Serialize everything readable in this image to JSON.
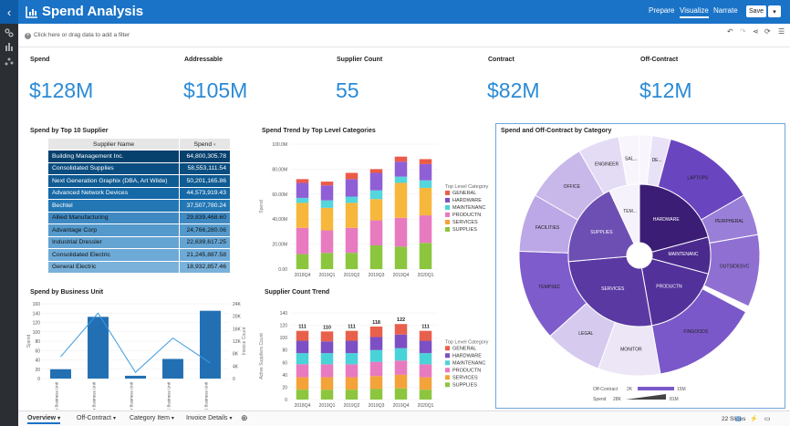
{
  "app": {
    "title": "Spend Analysis",
    "modes": [
      "Prepare",
      "Visualize",
      "Narrate"
    ],
    "active_mode": "Visualize",
    "save_label": "Save"
  },
  "filter": {
    "text": "Click here or drag data to add a filter"
  },
  "kpis": [
    {
      "label": "Spend",
      "value": "$128M"
    },
    {
      "label": "Addressable",
      "value": "$105M"
    },
    {
      "label": "Supplier Count",
      "value": "55"
    },
    {
      "label": "Contract",
      "value": "$82M"
    },
    {
      "label": "Off-Contract",
      "value": "$12M"
    }
  ],
  "supplier_table": {
    "title": "Spend by Top 10 Supplier",
    "columns": [
      "Supplier Name",
      "Spend"
    ],
    "rows": [
      {
        "name": "Building Management Inc.",
        "spend": "64,800,305.78",
        "shade": "#06406d"
      },
      {
        "name": "Consolidated Supplies",
        "spend": "58,553,111.54",
        "shade": "#0a4d80"
      },
      {
        "name": "Next Generation Graphix (DBA, Art Wilde)",
        "spend": "50,201,165.86",
        "shade": "#0f5b93"
      },
      {
        "name": "Advanced Network Devices",
        "spend": "44,573,919.43",
        "shade": "#1668a6"
      },
      {
        "name": "Bechtel",
        "spend": "37,507,780.24",
        "shade": "#2477b5"
      },
      {
        "name": "Allied Manufacturing",
        "spend": "29,839,468.60",
        "shade": "#3f89c2"
      },
      {
        "name": "Advantage Corp",
        "spend": "24,766,280.06",
        "shade": "#5499cc"
      },
      {
        "name": "Industrial Dressler",
        "spend": "22,639,617.25",
        "shade": "#64a4d3"
      },
      {
        "name": "Consolidated Electric",
        "spend": "21,245,887.58",
        "shade": "#6eaad7"
      },
      {
        "name": "General Electric",
        "spend": "18,932,857.46",
        "shade": "#79b1da"
      }
    ]
  },
  "trend_title": "Spend Trend by Top Level Categories",
  "count_title": "Supplier Count Trend",
  "bu_title": "Spend by Business Unit",
  "sunburst_title": "Spend and Off-Contract by Category",
  "colors": {
    "GENERAL": "#e8604c",
    "HARDWARE": "#7d4fc4",
    "MAINTENANC": "#49d3d9",
    "PRODUCTN": "#e87ac0",
    "SERVICES": "#f3a33a",
    "SUPPLIES": "#8cc63f",
    "bar": "#2270b3",
    "line": "#3d9be0"
  },
  "chart_data": [
    {
      "type": "bar",
      "stacked": true,
      "title": "Spend Trend by Top Level Categories",
      "ylabel": "Spend",
      "legend_title": "Top Level Category",
      "legend_position": "right",
      "ylim": [
        0,
        100
      ],
      "y_ticks": [
        "0.00",
        "20.00M",
        "40.00M",
        "60.00M",
        "80.00M",
        "100.0M"
      ],
      "categories": [
        "2018Q4",
        "2019Q1",
        "2019Q2",
        "2019Q3",
        "2019Q4",
        "2020Q1"
      ],
      "series": [
        {
          "name": "SUPPLIES",
          "values": [
            12,
            13,
            13,
            19,
            18,
            21
          ]
        },
        {
          "name": "SERVICES",
          "values": [
            0,
            0,
            0,
            0,
            0,
            0
          ]
        },
        {
          "name": "PRODUCTN",
          "values": [
            21,
            18,
            20,
            20,
            23,
            22
          ]
        },
        {
          "name": "MAINTENANC",
          "values": [
            0,
            0,
            0,
            0,
            0,
            0
          ]
        },
        {
          "name": "HARDWARE",
          "values": [
            0,
            0,
            0,
            0,
            0,
            0
          ]
        },
        {
          "name": "GENERAL",
          "values": [
            0,
            0,
            0,
            0,
            0,
            0
          ]
        },
        {
          "name": "_orange",
          "values": [
            20,
            18,
            20,
            17,
            28,
            22
          ]
        },
        {
          "name": "_cyan",
          "values": [
            4,
            6,
            5,
            7,
            5,
            6
          ]
        },
        {
          "name": "_purple",
          "values": [
            12,
            12,
            14,
            14,
            12,
            13
          ]
        },
        {
          "name": "_red",
          "values": [
            3,
            3,
            5,
            3,
            4,
            4
          ]
        }
      ],
      "legend": [
        "GENERAL",
        "HARDWARE",
        "MAINTENANC",
        "PRODUCTN",
        "SERVICES",
        "SUPPLIES"
      ]
    },
    {
      "type": "bar",
      "stacked": true,
      "title": "Supplier Count Trend",
      "ylabel": "Active Suppliers Count",
      "legend_title": "Top Level Category",
      "legend_position": "right",
      "ylim": [
        0,
        140
      ],
      "y_ticks": [
        "0",
        "20",
        "40",
        "60",
        "80",
        "100",
        "120",
        "140"
      ],
      "categories": [
        "2018Q4",
        "2019Q1",
        "2019Q2",
        "2019Q3",
        "2019Q4",
        "2020Q1"
      ],
      "totals": [
        111,
        110,
        111,
        118,
        122,
        111
      ],
      "series": [
        {
          "name": "SUPPLIES",
          "values": [
            16,
            16,
            16,
            17,
            18,
            16
          ]
        },
        {
          "name": "SERVICES",
          "values": [
            20,
            20,
            20,
            21,
            22,
            20
          ]
        },
        {
          "name": "PRODUCTN",
          "values": [
            21,
            21,
            21,
            23,
            23,
            21
          ]
        },
        {
          "name": "MAINTENANC",
          "values": [
            18,
            18,
            18,
            19,
            20,
            18
          ]
        },
        {
          "name": "HARDWARE",
          "values": [
            20,
            19,
            20,
            21,
            22,
            20
          ]
        },
        {
          "name": "GENERAL",
          "values": [
            16,
            16,
            16,
            17,
            17,
            16
          ]
        }
      ],
      "legend": [
        "GENERAL",
        "HARDWARE",
        "MAINTENANC",
        "PRODUCTN",
        "SERVICES",
        "SUPPLIES"
      ]
    },
    {
      "type": "bar",
      "title": "Spend by Business Unit",
      "ylabel": "Spend",
      "y2label": "Invoice Count",
      "categories": [
        "Germany Business Unit",
        "Japan Business Unit",
        "Sweden Business Unit",
        "UK Business Unit",
        "US Business Unit"
      ],
      "left_ticks": [
        "0",
        "20",
        "40",
        "60",
        "80",
        "100",
        "120",
        "140",
        "160"
      ],
      "right_ticks": [
        "0",
        "4K",
        "8K",
        "12K",
        "16K",
        "20K",
        "24K"
      ],
      "values": [
        20,
        132,
        6,
        42,
        145
      ],
      "ylim": [
        0,
        160
      ],
      "line": {
        "values": [
          7,
          21,
          2,
          13,
          5
        ],
        "ylim": [
          0,
          24
        ]
      }
    }
  ],
  "sunburst": {
    "inner": [
      {
        "label": "HARDWARE",
        "from": 0,
        "to": 75,
        "color": "#3b1d75"
      },
      {
        "label": "MAINTENANC",
        "from": 75,
        "to": 105,
        "color": "#4b2a8e"
      },
      {
        "label": "PRODUCTN",
        "from": 105,
        "to": 170,
        "color": "#53319a"
      },
      {
        "label": "SERVICES",
        "from": 170,
        "to": 265,
        "color": "#5a39a3"
      },
      {
        "label": "SUPPLIES",
        "from": 265,
        "to": 335,
        "color": "#6d4fb3"
      },
      {
        "label": "TEM...",
        "from": 335,
        "to": 360,
        "color": "#f5f2fb"
      }
    ],
    "outer": [
      {
        "label": "LAPTOPS",
        "from": 15,
        "to": 60,
        "color": "#6a45c0"
      },
      {
        "label": "PERIPHERAL",
        "from": 60,
        "to": 80,
        "color": "#9a7fd8"
      },
      {
        "label": "OUTSIDESVC",
        "from": 80,
        "to": 115,
        "color": "#8f70d2"
      },
      {
        "label": "FINGOODS",
        "from": 118,
        "to": 170,
        "color": "#7a58c9"
      },
      {
        "label": "MONITOR",
        "from": 170,
        "to": 200,
        "color": "#ece6f7"
      },
      {
        "label": "LEGAL",
        "from": 200,
        "to": 228,
        "color": "#d6cbef"
      },
      {
        "label": "TEMPSEC",
        "from": 228,
        "to": 272,
        "color": "#7e5ccb"
      },
      {
        "label": "FACILITIES",
        "from": 272,
        "to": 300,
        "color": "#bca8e6"
      },
      {
        "label": "OFFICE",
        "from": 300,
        "to": 330,
        "color": "#c8b8ea"
      },
      {
        "label": "ENGINEER",
        "from": 330,
        "to": 350,
        "color": "#e4dcf5"
      },
      {
        "label": "SAL...",
        "from": 350,
        "to": 360,
        "color": "#f8f6fc"
      },
      {
        "label": "",
        "from": 0,
        "to": 6,
        "color": "#f8f6fc"
      },
      {
        "label": "DE...",
        "from": 6,
        "to": 15,
        "color": "#e9e2f7"
      }
    ],
    "legend": {
      "off_label": "Off-Contract",
      "off_min": "2K",
      "off_max": "15M",
      "spend_label": "Spend",
      "spend_min": "28K",
      "spend_max": "81M"
    }
  },
  "tabs": [
    "Overview",
    "Off-Contract",
    "Category Item",
    "Invoice Details"
  ],
  "active_tab": "Overview",
  "status": {
    "slices": "22 Slices"
  }
}
